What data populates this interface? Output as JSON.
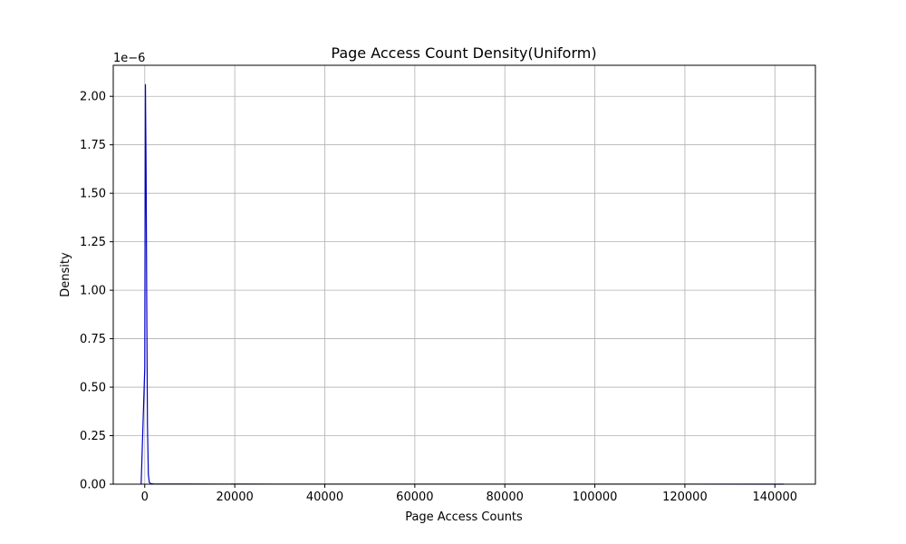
{
  "chart_data": {
    "type": "line",
    "title": "Page Access Count Density(Uniform)",
    "xlabel": "Page Access Counts",
    "ylabel": "Density",
    "y_offset_label": "1e−6",
    "xlim": [
      -7000,
      149000
    ],
    "ylim": [
      0,
      2.16
    ],
    "x_ticks": [
      0,
      20000,
      40000,
      60000,
      80000,
      100000,
      120000,
      140000
    ],
    "x_tick_labels": [
      "0",
      "20000",
      "40000",
      "60000",
      "80000",
      "100000",
      "120000",
      "140000"
    ],
    "y_ticks": [
      0,
      0.25,
      0.5,
      0.75,
      1.0,
      1.25,
      1.5,
      1.75,
      2.0
    ],
    "y_tick_labels": [
      "0.00",
      "0.25",
      "0.50",
      "0.75",
      "1.00",
      "1.25",
      "1.50",
      "1.75",
      "2.00"
    ],
    "grid": true,
    "line_color": "#0000cc",
    "series": [
      {
        "x": [
          -800,
          0,
          150,
          300,
          450,
          600,
          800,
          1000,
          1300,
          2000,
          10000,
          30000,
          60000,
          90000,
          120000,
          142000
        ],
        "y": [
          0,
          0.6,
          2.06,
          1.6,
          0.9,
          0.3,
          0.05,
          0.01,
          0.003,
          0.001,
          0.0005,
          0.0003,
          0.0002,
          0.0002,
          0.0002,
          0.0001
        ]
      }
    ]
  }
}
